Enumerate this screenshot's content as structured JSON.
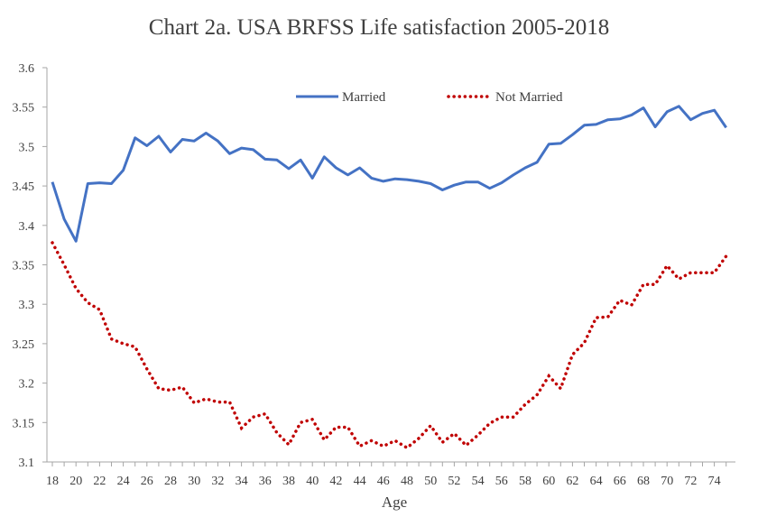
{
  "chart_data": {
    "type": "line",
    "title": "Chart 2a.  USA BRFSS Life satisfaction 2005-2018",
    "xlabel": "Age",
    "ylabel": "",
    "xlim": [
      18,
      75
    ],
    "ylim": [
      3.1,
      3.6
    ],
    "x_ticks": [
      18,
      20,
      22,
      24,
      26,
      28,
      30,
      32,
      34,
      36,
      38,
      40,
      42,
      44,
      46,
      48,
      50,
      52,
      54,
      56,
      58,
      60,
      62,
      64,
      66,
      68,
      70,
      72,
      74
    ],
    "y_ticks": [
      "3.1",
      "3.15",
      "3.2",
      "3.25",
      "3.3",
      "3.35",
      "3.4",
      "3.45",
      "3.5",
      "3.55",
      "3.6"
    ],
    "grid": false,
    "legend_position": "top-center",
    "x": [
      18,
      19,
      20,
      21,
      22,
      23,
      24,
      25,
      26,
      27,
      28,
      29,
      30,
      31,
      32,
      33,
      34,
      35,
      36,
      37,
      38,
      39,
      40,
      41,
      42,
      43,
      44,
      45,
      46,
      47,
      48,
      49,
      50,
      51,
      52,
      53,
      54,
      55,
      56,
      57,
      58,
      59,
      60,
      61,
      62,
      63,
      64,
      65,
      66,
      67,
      68,
      69,
      70,
      71,
      72,
      73,
      74,
      75
    ],
    "series": [
      {
        "name": "Married",
        "color": "#4472c4",
        "style": "solid",
        "values": [
          3.455,
          3.408,
          3.38,
          3.453,
          3.454,
          3.453,
          3.47,
          3.511,
          3.501,
          3.513,
          3.493,
          3.509,
          3.507,
          3.517,
          3.507,
          3.491,
          3.498,
          3.496,
          3.484,
          3.483,
          3.472,
          3.483,
          3.46,
          3.487,
          3.473,
          3.464,
          3.473,
          3.46,
          3.456,
          3.459,
          3.458,
          3.456,
          3.453,
          3.445,
          3.451,
          3.455,
          3.455,
          3.447,
          3.454,
          3.464,
          3.473,
          3.48,
          3.503,
          3.504,
          3.515,
          3.527,
          3.528,
          3.534,
          3.535,
          3.54,
          3.549,
          3.525,
          3.544,
          3.551,
          3.534,
          3.542,
          3.546,
          3.524
        ]
      },
      {
        "name": "Not Married",
        "color": "#c00000",
        "style": "dotted",
        "values": [
          3.378,
          3.35,
          3.32,
          3.302,
          3.293,
          3.256,
          3.25,
          3.246,
          3.218,
          3.193,
          3.191,
          3.195,
          3.175,
          3.18,
          3.176,
          3.176,
          3.143,
          3.157,
          3.161,
          3.137,
          3.122,
          3.15,
          3.154,
          3.128,
          3.144,
          3.144,
          3.12,
          3.127,
          3.12,
          3.127,
          3.118,
          3.13,
          3.146,
          3.125,
          3.136,
          3.121,
          3.134,
          3.149,
          3.157,
          3.157,
          3.173,
          3.185,
          3.209,
          3.193,
          3.236,
          3.251,
          3.283,
          3.284,
          3.305,
          3.299,
          3.325,
          3.325,
          3.349,
          3.332,
          3.34,
          3.34,
          3.34,
          3.361
        ]
      }
    ]
  }
}
